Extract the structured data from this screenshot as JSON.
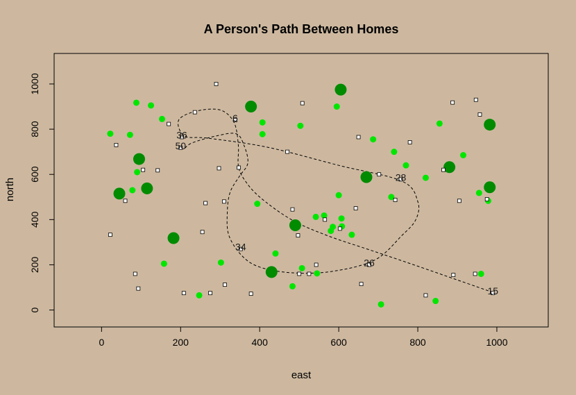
{
  "chart_data": {
    "type": "scatter",
    "title": "A Person's Path Between Homes",
    "xlabel": "east",
    "ylabel": "north",
    "xlim": [
      -120,
      1130
    ],
    "ylim": [
      -75,
      1135
    ],
    "x_ticks": [
      0,
      200,
      400,
      600,
      800,
      1000
    ],
    "y_ticks": [
      0,
      200,
      400,
      600,
      800,
      1000
    ],
    "grid": false,
    "colors": {
      "background": "#cdb89f",
      "small_trees": "#00e600",
      "big_trees": "#008b00",
      "homes": "#ffffff",
      "path": "#000000"
    },
    "homes": [
      {
        "x": 22,
        "y": 333
      },
      {
        "x": 37,
        "y": 730
      },
      {
        "x": 60,
        "y": 483
      },
      {
        "x": 85,
        "y": 160
      },
      {
        "x": 93,
        "y": 95
      },
      {
        "x": 105,
        "y": 620
      },
      {
        "x": 142,
        "y": 618
      },
      {
        "x": 170,
        "y": 823
      },
      {
        "x": 200,
        "y": 718
      },
      {
        "x": 203,
        "y": 765
      },
      {
        "x": 208,
        "y": 75
      },
      {
        "x": 236,
        "y": 875
      },
      {
        "x": 255,
        "y": 345
      },
      {
        "x": 263,
        "y": 473
      },
      {
        "x": 275,
        "y": 75
      },
      {
        "x": 290,
        "y": 1000
      },
      {
        "x": 297,
        "y": 627
      },
      {
        "x": 310,
        "y": 480
      },
      {
        "x": 312,
        "y": 112
      },
      {
        "x": 338,
        "y": 840
      },
      {
        "x": 347,
        "y": 630
      },
      {
        "x": 352,
        "y": 270
      },
      {
        "x": 378,
        "y": 72
      },
      {
        "x": 470,
        "y": 700
      },
      {
        "x": 483,
        "y": 445
      },
      {
        "x": 497,
        "y": 330
      },
      {
        "x": 500,
        "y": 160
      },
      {
        "x": 508,
        "y": 915
      },
      {
        "x": 525,
        "y": 160
      },
      {
        "x": 543,
        "y": 200
      },
      {
        "x": 565,
        "y": 400
      },
      {
        "x": 603,
        "y": 360
      },
      {
        "x": 643,
        "y": 450
      },
      {
        "x": 650,
        "y": 765
      },
      {
        "x": 657,
        "y": 115
      },
      {
        "x": 677,
        "y": 200
      },
      {
        "x": 702,
        "y": 600
      },
      {
        "x": 743,
        "y": 487
      },
      {
        "x": 757,
        "y": 578
      },
      {
        "x": 780,
        "y": 742
      },
      {
        "x": 820,
        "y": 65
      },
      {
        "x": 865,
        "y": 620
      },
      {
        "x": 888,
        "y": 918
      },
      {
        "x": 890,
        "y": 155
      },
      {
        "x": 905,
        "y": 483
      },
      {
        "x": 945,
        "y": 160
      },
      {
        "x": 947,
        "y": 930
      },
      {
        "x": 957,
        "y": 865
      },
      {
        "x": 975,
        "y": 490
      },
      {
        "x": 990,
        "y": 75
      }
    ],
    "small_trees": [
      {
        "x": 22,
        "y": 780
      },
      {
        "x": 72,
        "y": 775
      },
      {
        "x": 78,
        "y": 530
      },
      {
        "x": 88,
        "y": 917
      },
      {
        "x": 90,
        "y": 610
      },
      {
        "x": 125,
        "y": 905
      },
      {
        "x": 153,
        "y": 845
      },
      {
        "x": 158,
        "y": 205
      },
      {
        "x": 247,
        "y": 65
      },
      {
        "x": 302,
        "y": 210
      },
      {
        "x": 394,
        "y": 470
      },
      {
        "x": 407,
        "y": 830
      },
      {
        "x": 407,
        "y": 778
      },
      {
        "x": 440,
        "y": 250
      },
      {
        "x": 483,
        "y": 105
      },
      {
        "x": 503,
        "y": 815
      },
      {
        "x": 507,
        "y": 185
      },
      {
        "x": 542,
        "y": 412
      },
      {
        "x": 545,
        "y": 162
      },
      {
        "x": 563,
        "y": 418
      },
      {
        "x": 580,
        "y": 350
      },
      {
        "x": 585,
        "y": 368
      },
      {
        "x": 595,
        "y": 900
      },
      {
        "x": 600,
        "y": 508
      },
      {
        "x": 607,
        "y": 405
      },
      {
        "x": 608,
        "y": 370
      },
      {
        "x": 633,
        "y": 333
      },
      {
        "x": 687,
        "y": 755
      },
      {
        "x": 707,
        "y": 25
      },
      {
        "x": 733,
        "y": 500
      },
      {
        "x": 740,
        "y": 700
      },
      {
        "x": 770,
        "y": 640
      },
      {
        "x": 820,
        "y": 585
      },
      {
        "x": 845,
        "y": 40
      },
      {
        "x": 855,
        "y": 825
      },
      {
        "x": 915,
        "y": 685
      },
      {
        "x": 955,
        "y": 518
      },
      {
        "x": 960,
        "y": 160
      },
      {
        "x": 978,
        "y": 483
      }
    ],
    "big_trees": [
      {
        "x": 45,
        "y": 515
      },
      {
        "x": 95,
        "y": 668
      },
      {
        "x": 115,
        "y": 538
      },
      {
        "x": 182,
        "y": 318
      },
      {
        "x": 378,
        "y": 900
      },
      {
        "x": 430,
        "y": 168
      },
      {
        "x": 490,
        "y": 375
      },
      {
        "x": 605,
        "y": 975
      },
      {
        "x": 670,
        "y": 588
      },
      {
        "x": 880,
        "y": 632
      },
      {
        "x": 982,
        "y": 820
      },
      {
        "x": 982,
        "y": 543
      }
    ],
    "path": [
      {
        "x": 990,
        "y": 78
      },
      {
        "x": 900,
        "y": 133
      },
      {
        "x": 790,
        "y": 200
      },
      {
        "x": 680,
        "y": 265
      },
      {
        "x": 570,
        "y": 330
      },
      {
        "x": 480,
        "y": 400
      },
      {
        "x": 400,
        "y": 500
      },
      {
        "x": 360,
        "y": 580
      },
      {
        "x": 346,
        "y": 640
      },
      {
        "x": 346,
        "y": 730
      },
      {
        "x": 335,
        "y": 830
      },
      {
        "x": 300,
        "y": 885
      },
      {
        "x": 240,
        "y": 880
      },
      {
        "x": 195,
        "y": 840
      },
      {
        "x": 210,
        "y": 770
      },
      {
        "x": 270,
        "y": 760
      },
      {
        "x": 420,
        "y": 720
      },
      {
        "x": 600,
        "y": 640
      },
      {
        "x": 760,
        "y": 570
      },
      {
        "x": 800,
        "y": 480
      },
      {
        "x": 795,
        "y": 400
      },
      {
        "x": 760,
        "y": 330
      },
      {
        "x": 690,
        "y": 220
      },
      {
        "x": 580,
        "y": 170
      },
      {
        "x": 480,
        "y": 165
      },
      {
        "x": 400,
        "y": 190
      },
      {
        "x": 355,
        "y": 240
      },
      {
        "x": 322,
        "y": 330
      },
      {
        "x": 318,
        "y": 430
      },
      {
        "x": 325,
        "y": 520
      },
      {
        "x": 348,
        "y": 590
      },
      {
        "x": 370,
        "y": 650
      },
      {
        "x": 360,
        "y": 730
      },
      {
        "x": 340,
        "y": 780
      },
      {
        "x": 290,
        "y": 770
      },
      {
        "x": 230,
        "y": 740
      },
      {
        "x": 210,
        "y": 715
      }
    ],
    "labeled_homes": [
      {
        "label": "6",
        "x": 338,
        "y": 840
      },
      {
        "label": "36",
        "x": 203,
        "y": 765
      },
      {
        "label": "50",
        "x": 200,
        "y": 718
      },
      {
        "label": "28",
        "x": 757,
        "y": 578
      },
      {
        "label": "34",
        "x": 352,
        "y": 270
      },
      {
        "label": "26",
        "x": 677,
        "y": 200
      },
      {
        "label": "15",
        "x": 990,
        "y": 75
      }
    ]
  }
}
